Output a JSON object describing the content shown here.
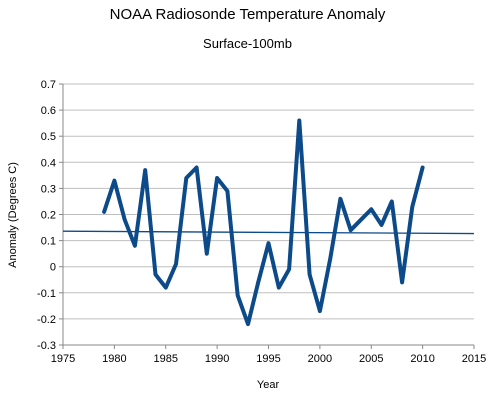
{
  "chart_data": {
    "type": "line",
    "title": "NOAA Radiosonde Temperature Anomaly",
    "subtitle": "Surface-100mb",
    "xlabel": "Year",
    "ylabel": "Anomaly (Degrees C)",
    "xlim": [
      1975,
      2015
    ],
    "ylim": [
      -0.3,
      0.7
    ],
    "xticks": [
      1975,
      1980,
      1985,
      1990,
      1995,
      2000,
      2005,
      2010,
      2015
    ],
    "yticks": [
      -0.3,
      -0.2,
      -0.1,
      0,
      0.1,
      0.2,
      0.3,
      0.4,
      0.5,
      0.6,
      0.7
    ],
    "ytick_labels": [
      "-0.3",
      "-0.2",
      "-0.1",
      "0",
      "0.1",
      "0.2",
      "0.3",
      "0.4",
      "0.5",
      "0.6",
      "0.7"
    ],
    "grid": "horizontal",
    "series": [
      {
        "x": [
          1979,
          1980,
          1981,
          1982,
          1983,
          1984,
          1985,
          1986,
          1987,
          1988,
          1989,
          1990,
          1991,
          1992,
          1993,
          1994,
          1995,
          1996,
          1997,
          1998,
          1999,
          2000,
          2001,
          2002,
          2003,
          2004,
          2005,
          2006,
          2007,
          2008,
          2009,
          2010
        ],
        "values": [
          0.21,
          0.33,
          0.18,
          0.08,
          0.37,
          -0.03,
          -0.08,
          0.01,
          0.34,
          0.38,
          0.05,
          0.34,
          0.29,
          -0.11,
          -0.22,
          -0.06,
          0.09,
          -0.08,
          -0.01,
          0.56,
          -0.03,
          -0.17,
          0.03,
          0.26,
          0.14,
          0.18,
          0.22,
          0.16,
          0.25,
          -0.06,
          0.23,
          0.38
        ],
        "color": "#0d4a8a"
      }
    ],
    "trendline": {
      "x": [
        1975,
        2015
      ],
      "values": [
        0.136,
        0.127
      ],
      "color": "#0d4a8a"
    }
  }
}
